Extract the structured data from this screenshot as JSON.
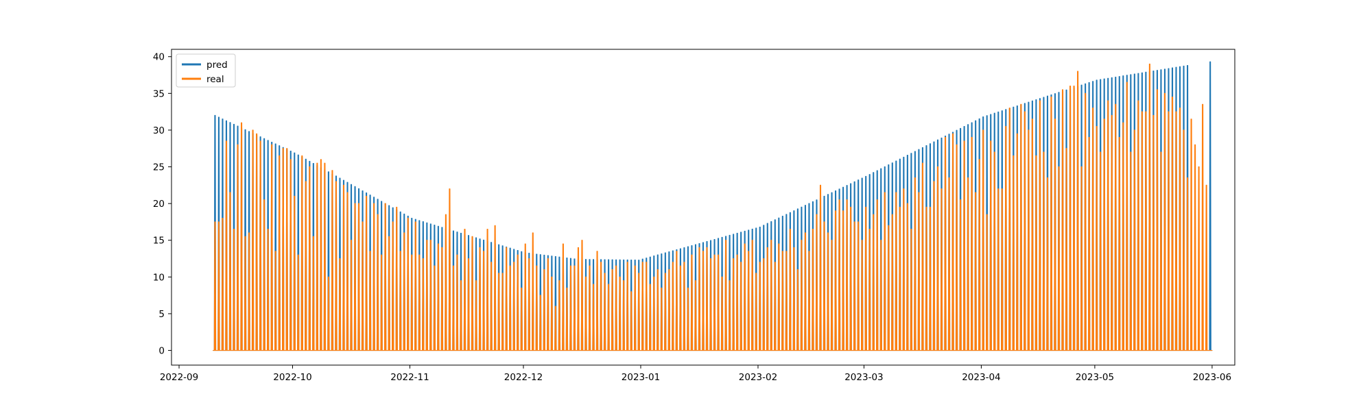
{
  "chart_data": {
    "type": "area",
    "title": "",
    "xlabel": "",
    "ylabel": "",
    "xlim": [
      "2022-08-30",
      "2023-06-07"
    ],
    "ylim": [
      -2,
      41
    ],
    "x_ticks": [
      "2022-09",
      "2022-10",
      "2022-11",
      "2022-12",
      "2023-01",
      "2023-02",
      "2023-03",
      "2023-04",
      "2023-05",
      "2023-06"
    ],
    "y_ticks": [
      0,
      5,
      10,
      15,
      20,
      25,
      30,
      35,
      40
    ],
    "x_start": "2022-09-10",
    "x_end": "2023-05-31",
    "legend": {
      "position": "upper-left",
      "entries": [
        "pred",
        "real"
      ]
    },
    "grid": false,
    "series": [
      {
        "name": "pred",
        "color": "#1f77b4",
        "description": "daily profile peaking at an envelope that follows a seasonal curve",
        "envelope_points": [
          {
            "x": "2022-09-10",
            "y": 32.0
          },
          {
            "x": "2022-10-01",
            "y": 26.9
          },
          {
            "x": "2022-11-01",
            "y": 18.0
          },
          {
            "x": "2022-12-01",
            "y": 13.3
          },
          {
            "x": "2022-12-15",
            "y": 12.4
          },
          {
            "x": "2022-12-31",
            "y": 12.3
          },
          {
            "x": "2023-02-01",
            "y": 16.8
          },
          {
            "x": "2023-03-01",
            "y": 23.7
          },
          {
            "x": "2023-04-01",
            "y": 31.8
          },
          {
            "x": "2023-05-01",
            "y": 36.8
          },
          {
            "x": "2023-05-31",
            "y": 39.3
          }
        ],
        "zero_gaps": [
          [
            "2023-05-26",
            "2023-05-30"
          ]
        ]
      },
      {
        "name": "real",
        "color": "#ff7f0e",
        "description": "observed daily peaks, typically at or below pred",
        "daily_peaks": [
          17.5,
          18.0,
          28.5,
          21.5,
          16.5,
          28.0,
          31.0,
          15.5,
          16.0,
          30.0,
          29.5,
          28.5,
          20.5,
          16.5,
          28.0,
          13.5,
          26.5,
          27.5,
          26.0,
          21.0,
          13.0,
          26.5,
          23.0,
          25.0,
          15.5,
          25.5,
          26.0,
          25.5,
          10.0,
          24.5,
          23.0,
          12.5,
          22.5,
          21.5,
          15.0,
          20.0,
          17.5,
          21.0,
          13.5,
          20.0,
          18.5,
          13.0,
          20.0,
          15.5,
          17.5,
          19.5,
          13.5,
          16.0,
          18.0,
          13.0,
          17.5,
          13.0,
          12.5,
          15.0,
          11.5,
          14.5,
          14.0,
          18.5,
          22.0,
          11.5,
          13.0,
          9.5,
          16.5,
          12.5,
          15.5,
          9.5,
          14.0,
          13.5,
          16.5,
          12.0,
          17.0,
          10.5,
          14.0,
          11.5,
          12.0,
          13.0,
          8.5,
          14.5,
          12.5,
          16.0,
          11.5,
          7.5,
          11.0,
          12.5,
          10.0,
          6.0,
          9.5,
          14.5,
          8.5,
          11.5,
          14.0,
          15.0,
          10.0,
          11.5,
          9.0,
          13.5,
          12.0,
          10.5,
          9.0,
          11.0,
          11.5,
          10.0,
          9.5,
          12.0,
          8.0,
          11.5,
          10.5,
          12.0,
          9.0,
          10.0,
          11.0,
          8.5,
          10.5,
          11.0,
          12.0,
          13.5,
          11.5,
          12.0,
          8.5,
          13.0,
          9.5,
          14.0,
          13.5,
          14.0,
          12.5,
          13.0,
          10.0,
          15.0,
          9.5,
          12.5,
          13.0,
          12.0,
          14.5,
          13.5,
          15.0,
          10.5,
          12.0,
          12.5,
          14.0,
          15.0,
          12.0,
          14.5,
          13.5,
          16.5,
          14.0,
          11.0,
          15.0,
          16.0,
          13.5,
          16.5,
          18.5,
          22.5,
          17.5,
          16.0,
          15.0,
          19.0,
          20.5,
          19.0,
          20.5,
          19.5,
          17.5,
          15.0,
          19.5,
          16.5,
          18.5,
          20.5,
          15.0,
          21.5,
          17.0,
          18.5,
          21.5,
          19.5,
          22.0,
          20.0,
          16.5,
          23.5,
          21.5,
          25.5,
          19.5,
          23.0,
          25.0,
          22.0,
          29.0,
          23.5,
          29.5,
          28.0,
          20.5,
          28.5,
          23.5,
          29.0,
          21.5,
          26.0,
          30.0,
          18.5,
          28.5,
          27.0,
          22.0,
          30.5,
          33.0,
          26.5,
          29.5,
          33.5,
          32.5,
          30.0,
          31.5,
          26.5,
          34.0,
          27.0,
          23.5,
          34.5,
          31.5,
          25.0,
          35.5,
          27.5,
          36.0,
          38.0,
          25.0,
          35.0,
          29.0,
          33.0,
          30.5,
          27.0,
          31.5,
          34.0,
          32.0,
          33.5,
          29.0,
          31.0,
          36.5,
          27.0,
          30.0,
          34.0,
          32.5,
          39.0,
          32.0,
          35.5,
          27.0,
          35.0,
          32.5,
          34.5,
          32.5,
          33.0,
          30.0,
          23.5,
          31.5,
          28.0,
          25.0,
          33.5,
          22.5,
          0.0
        ]
      }
    ]
  }
}
